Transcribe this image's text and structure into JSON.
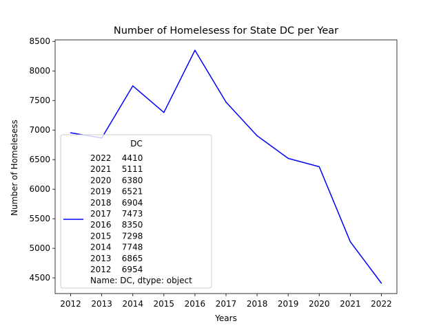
{
  "chart_data": {
    "type": "line",
    "title": "Number of Homelesess for State DC per Year",
    "xlabel": "Years",
    "ylabel": "Number of Homelesess",
    "x": [
      2012,
      2013,
      2014,
      2015,
      2016,
      2017,
      2018,
      2019,
      2020,
      2021,
      2022
    ],
    "xlim": [
      2011.5,
      2022.5
    ],
    "ylim": [
      4234,
      8526
    ],
    "yticks": [
      4500,
      5000,
      5500,
      6000,
      6500,
      7000,
      7500,
      8000,
      8500
    ],
    "grid": false,
    "series": [
      {
        "name": "2022    4410\n2021    5111\n2020    6380\n2019    6521\n2018    6904\n2017    7473\n2016    8350\n2015    7298\n2014    7748\n2013    6865\n2012    6954\nName: DC, dtype: object",
        "color": "#0000ff",
        "values": [
          6954,
          6865,
          7748,
          7298,
          8350,
          7473,
          6904,
          6521,
          6380,
          5111,
          4410
        ]
      }
    ],
    "legend": {
      "title": "DC",
      "placement": "lower-left",
      "lines": [
        "2022    4410",
        "2021    5111",
        "2020    6380",
        "2019    6521",
        "2018    6904",
        "2017    7473",
        "2016    8350",
        "2015    7298",
        "2014    7748",
        "2013    6865",
        "2012    6954",
        "Name: DC, dtype: object"
      ]
    }
  }
}
